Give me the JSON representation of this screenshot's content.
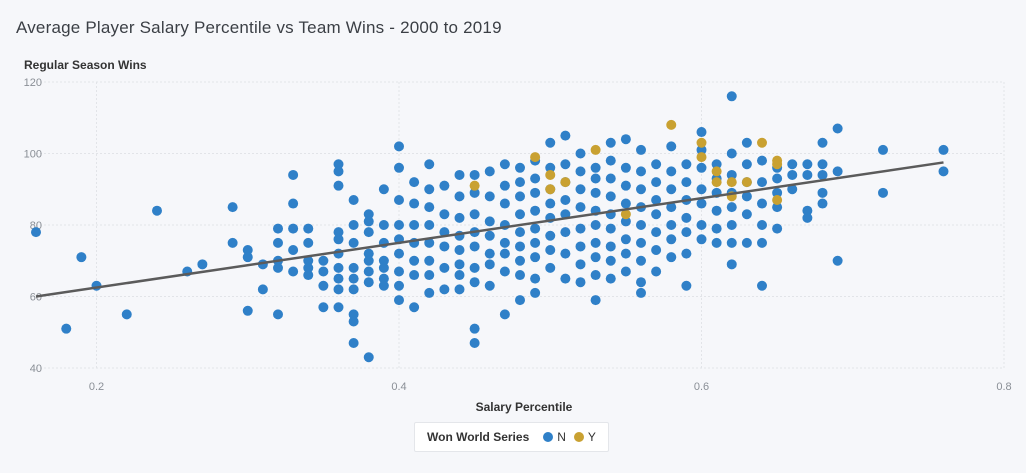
{
  "colors": {
    "N": "#2f80c8",
    "Y": "#c9a131",
    "trend": "#5b5b5b",
    "grid": "#e2e4e8",
    "tick": "#8a8f96"
  },
  "chart_data": {
    "type": "scatter",
    "title": "Average Player Salary Percentile vs Team Wins - 2000 to 2019",
    "xlabel": "Salary Percentile",
    "ylabel": "Regular Season Wins",
    "xlim": [
      0.16,
      0.8
    ],
    "ylim": [
      40,
      120
    ],
    "xticks": [
      0.2,
      0.4,
      0.6,
      0.8
    ],
    "yticks": [
      40,
      60,
      80,
      100,
      120
    ],
    "x_tick_labels": [
      "0.2",
      "0.4",
      "0.6",
      "0.8"
    ],
    "y_tick_labels": [
      "40",
      "60",
      "80",
      "100",
      "120"
    ],
    "grid": true,
    "legend": {
      "title": "Won World Series",
      "placement": "bottom",
      "entries": [
        "N",
        "Y"
      ]
    },
    "trendline": {
      "x": [
        0.16,
        0.76
      ],
      "y": [
        60,
        97.5
      ]
    },
    "series": [
      {
        "name": "N",
        "points": [
          [
            0.16,
            78
          ],
          [
            0.18,
            51
          ],
          [
            0.19,
            71
          ],
          [
            0.2,
            63
          ],
          [
            0.22,
            55
          ],
          [
            0.24,
            84
          ],
          [
            0.26,
            67
          ],
          [
            0.27,
            69
          ],
          [
            0.29,
            85
          ],
          [
            0.29,
            75
          ],
          [
            0.3,
            73
          ],
          [
            0.3,
            71
          ],
          [
            0.3,
            56
          ],
          [
            0.31,
            69
          ],
          [
            0.31,
            62
          ],
          [
            0.32,
            79
          ],
          [
            0.32,
            75
          ],
          [
            0.32,
            70
          ],
          [
            0.32,
            68
          ],
          [
            0.32,
            55
          ],
          [
            0.33,
            94
          ],
          [
            0.33,
            86
          ],
          [
            0.33,
            79
          ],
          [
            0.33,
            73
          ],
          [
            0.33,
            67
          ],
          [
            0.34,
            79
          ],
          [
            0.34,
            75
          ],
          [
            0.34,
            70
          ],
          [
            0.34,
            68
          ],
          [
            0.34,
            66
          ],
          [
            0.35,
            70
          ],
          [
            0.35,
            67
          ],
          [
            0.35,
            63
          ],
          [
            0.35,
            57
          ],
          [
            0.36,
            97
          ],
          [
            0.36,
            95
          ],
          [
            0.36,
            91
          ],
          [
            0.36,
            78
          ],
          [
            0.36,
            76
          ],
          [
            0.36,
            72
          ],
          [
            0.36,
            68
          ],
          [
            0.36,
            65
          ],
          [
            0.36,
            62
          ],
          [
            0.36,
            57
          ],
          [
            0.37,
            87
          ],
          [
            0.37,
            80
          ],
          [
            0.37,
            75
          ],
          [
            0.37,
            68
          ],
          [
            0.37,
            65
          ],
          [
            0.37,
            62
          ],
          [
            0.37,
            55
          ],
          [
            0.37,
            53
          ],
          [
            0.37,
            47
          ],
          [
            0.38,
            83
          ],
          [
            0.38,
            81
          ],
          [
            0.38,
            78
          ],
          [
            0.38,
            72
          ],
          [
            0.38,
            70
          ],
          [
            0.38,
            67
          ],
          [
            0.38,
            64
          ],
          [
            0.38,
            43
          ],
          [
            0.39,
            90
          ],
          [
            0.39,
            80
          ],
          [
            0.39,
            75
          ],
          [
            0.39,
            70
          ],
          [
            0.39,
            68
          ],
          [
            0.39,
            65
          ],
          [
            0.39,
            63
          ],
          [
            0.4,
            102
          ],
          [
            0.4,
            96
          ],
          [
            0.4,
            87
          ],
          [
            0.4,
            80
          ],
          [
            0.4,
            76
          ],
          [
            0.4,
            72
          ],
          [
            0.4,
            67
          ],
          [
            0.4,
            63
          ],
          [
            0.4,
            59
          ],
          [
            0.41,
            92
          ],
          [
            0.41,
            86
          ],
          [
            0.41,
            80
          ],
          [
            0.41,
            75
          ],
          [
            0.41,
            70
          ],
          [
            0.41,
            66
          ],
          [
            0.41,
            57
          ],
          [
            0.42,
            97
          ],
          [
            0.42,
            90
          ],
          [
            0.42,
            85
          ],
          [
            0.42,
            80
          ],
          [
            0.42,
            75
          ],
          [
            0.42,
            70
          ],
          [
            0.42,
            66
          ],
          [
            0.42,
            61
          ],
          [
            0.43,
            91
          ],
          [
            0.43,
            83
          ],
          [
            0.43,
            78
          ],
          [
            0.43,
            74
          ],
          [
            0.43,
            68
          ],
          [
            0.43,
            62
          ],
          [
            0.44,
            94
          ],
          [
            0.44,
            88
          ],
          [
            0.44,
            82
          ],
          [
            0.44,
            77
          ],
          [
            0.44,
            73
          ],
          [
            0.44,
            69
          ],
          [
            0.44,
            66
          ],
          [
            0.44,
            62
          ],
          [
            0.45,
            94
          ],
          [
            0.45,
            89
          ],
          [
            0.45,
            83
          ],
          [
            0.45,
            78
          ],
          [
            0.45,
            74
          ],
          [
            0.45,
            68
          ],
          [
            0.45,
            64
          ],
          [
            0.45,
            51
          ],
          [
            0.45,
            47
          ],
          [
            0.46,
            95
          ],
          [
            0.46,
            88
          ],
          [
            0.46,
            81
          ],
          [
            0.46,
            77
          ],
          [
            0.46,
            72
          ],
          [
            0.46,
            69
          ],
          [
            0.46,
            63
          ],
          [
            0.47,
            97
          ],
          [
            0.47,
            91
          ],
          [
            0.47,
            86
          ],
          [
            0.47,
            80
          ],
          [
            0.47,
            75
          ],
          [
            0.47,
            72
          ],
          [
            0.47,
            67
          ],
          [
            0.47,
            55
          ],
          [
            0.48,
            96
          ],
          [
            0.48,
            92
          ],
          [
            0.48,
            88
          ],
          [
            0.48,
            83
          ],
          [
            0.48,
            78
          ],
          [
            0.48,
            74
          ],
          [
            0.48,
            70
          ],
          [
            0.48,
            66
          ],
          [
            0.48,
            59
          ],
          [
            0.49,
            98
          ],
          [
            0.49,
            93
          ],
          [
            0.49,
            89
          ],
          [
            0.49,
            84
          ],
          [
            0.49,
            79
          ],
          [
            0.49,
            75
          ],
          [
            0.49,
            71
          ],
          [
            0.49,
            65
          ],
          [
            0.49,
            61
          ],
          [
            0.5,
            103
          ],
          [
            0.5,
            96
          ],
          [
            0.5,
            90
          ],
          [
            0.5,
            86
          ],
          [
            0.5,
            82
          ],
          [
            0.5,
            77
          ],
          [
            0.5,
            73
          ],
          [
            0.5,
            68
          ],
          [
            0.51,
            105
          ],
          [
            0.51,
            97
          ],
          [
            0.51,
            92
          ],
          [
            0.51,
            87
          ],
          [
            0.51,
            83
          ],
          [
            0.51,
            78
          ],
          [
            0.51,
            72
          ],
          [
            0.51,
            65
          ],
          [
            0.52,
            100
          ],
          [
            0.52,
            95
          ],
          [
            0.52,
            90
          ],
          [
            0.52,
            85
          ],
          [
            0.52,
            79
          ],
          [
            0.52,
            74
          ],
          [
            0.52,
            69
          ],
          [
            0.52,
            64
          ],
          [
            0.53,
            96
          ],
          [
            0.53,
            93
          ],
          [
            0.53,
            89
          ],
          [
            0.53,
            84
          ],
          [
            0.53,
            80
          ],
          [
            0.53,
            75
          ],
          [
            0.53,
            71
          ],
          [
            0.53,
            66
          ],
          [
            0.53,
            59
          ],
          [
            0.54,
            103
          ],
          [
            0.54,
            98
          ],
          [
            0.54,
            93
          ],
          [
            0.54,
            88
          ],
          [
            0.54,
            83
          ],
          [
            0.54,
            79
          ],
          [
            0.54,
            74
          ],
          [
            0.54,
            70
          ],
          [
            0.54,
            65
          ],
          [
            0.55,
            104
          ],
          [
            0.55,
            96
          ],
          [
            0.55,
            91
          ],
          [
            0.55,
            86
          ],
          [
            0.55,
            81
          ],
          [
            0.55,
            76
          ],
          [
            0.55,
            72
          ],
          [
            0.55,
            67
          ],
          [
            0.56,
            101
          ],
          [
            0.56,
            95
          ],
          [
            0.56,
            90
          ],
          [
            0.56,
            85
          ],
          [
            0.56,
            80
          ],
          [
            0.56,
            75
          ],
          [
            0.56,
            70
          ],
          [
            0.56,
            64
          ],
          [
            0.56,
            61
          ],
          [
            0.57,
            97
          ],
          [
            0.57,
            92
          ],
          [
            0.57,
            87
          ],
          [
            0.57,
            83
          ],
          [
            0.57,
            78
          ],
          [
            0.57,
            73
          ],
          [
            0.57,
            67
          ],
          [
            0.58,
            102
          ],
          [
            0.58,
            95
          ],
          [
            0.58,
            90
          ],
          [
            0.58,
            85
          ],
          [
            0.58,
            80
          ],
          [
            0.58,
            76
          ],
          [
            0.58,
            71
          ],
          [
            0.59,
            97
          ],
          [
            0.59,
            92
          ],
          [
            0.59,
            87
          ],
          [
            0.59,
            82
          ],
          [
            0.59,
            78
          ],
          [
            0.59,
            72
          ],
          [
            0.59,
            63
          ],
          [
            0.6,
            106
          ],
          [
            0.6,
            101
          ],
          [
            0.6,
            96
          ],
          [
            0.6,
            90
          ],
          [
            0.6,
            86
          ],
          [
            0.6,
            80
          ],
          [
            0.6,
            76
          ],
          [
            0.61,
            97
          ],
          [
            0.61,
            93
          ],
          [
            0.61,
            89
          ],
          [
            0.61,
            84
          ],
          [
            0.61,
            79
          ],
          [
            0.61,
            75
          ],
          [
            0.62,
            116
          ],
          [
            0.62,
            100
          ],
          [
            0.62,
            94
          ],
          [
            0.62,
            89
          ],
          [
            0.62,
            85
          ],
          [
            0.62,
            80
          ],
          [
            0.62,
            75
          ],
          [
            0.62,
            69
          ],
          [
            0.63,
            103
          ],
          [
            0.63,
            97
          ],
          [
            0.63,
            92
          ],
          [
            0.63,
            88
          ],
          [
            0.63,
            83
          ],
          [
            0.63,
            75
          ],
          [
            0.64,
            98
          ],
          [
            0.64,
            92
          ],
          [
            0.64,
            86
          ],
          [
            0.64,
            80
          ],
          [
            0.64,
            75
          ],
          [
            0.64,
            63
          ],
          [
            0.65,
            96
          ],
          [
            0.65,
            93
          ],
          [
            0.65,
            89
          ],
          [
            0.65,
            85
          ],
          [
            0.65,
            79
          ],
          [
            0.66,
            97
          ],
          [
            0.66,
            94
          ],
          [
            0.66,
            90
          ],
          [
            0.67,
            97
          ],
          [
            0.67,
            94
          ],
          [
            0.67,
            84
          ],
          [
            0.67,
            82
          ],
          [
            0.68,
            97
          ],
          [
            0.68,
            94
          ],
          [
            0.68,
            89
          ],
          [
            0.68,
            86
          ],
          [
            0.69,
            107
          ],
          [
            0.69,
            95
          ],
          [
            0.69,
            70
          ],
          [
            0.68,
            103
          ],
          [
            0.72,
            101
          ],
          [
            0.72,
            89
          ],
          [
            0.76,
            101
          ],
          [
            0.76,
            95
          ]
        ]
      },
      {
        "name": "Y",
        "points": [
          [
            0.45,
            91
          ],
          [
            0.49,
            99
          ],
          [
            0.5,
            94
          ],
          [
            0.5,
            90
          ],
          [
            0.51,
            92
          ],
          [
            0.53,
            101
          ],
          [
            0.55,
            83
          ],
          [
            0.58,
            108
          ],
          [
            0.6,
            103
          ],
          [
            0.6,
            99
          ],
          [
            0.61,
            95
          ],
          [
            0.61,
            92
          ],
          [
            0.62,
            92
          ],
          [
            0.62,
            88
          ],
          [
            0.63,
            92
          ],
          [
            0.64,
            103
          ],
          [
            0.65,
            97
          ],
          [
            0.65,
            98
          ],
          [
            0.65,
            87
          ]
        ]
      }
    ]
  }
}
